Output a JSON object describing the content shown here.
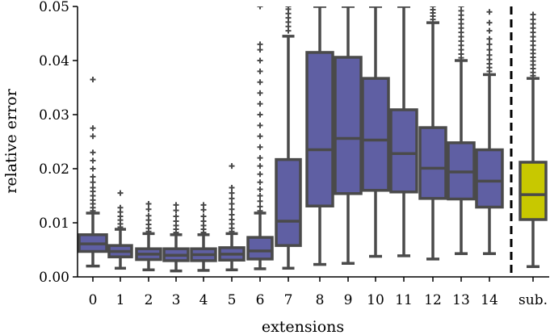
{
  "chart_data": {
    "type": "box",
    "xlabel": "extensions",
    "ylabel": "relative error",
    "ylim": [
      0,
      0.05
    ],
    "yticks": [
      "0.00",
      "0.01",
      "0.02",
      "0.03",
      "0.04",
      "0.05"
    ],
    "categories": [
      "0",
      "1",
      "2",
      "3",
      "4",
      "5",
      "6",
      "7",
      "8",
      "9",
      "10",
      "11",
      "12",
      "13",
      "14",
      "sub."
    ],
    "separator_after_category": "14",
    "colors": {
      "box_fill": "#5f5fa3",
      "sub_fill": "#c8c800",
      "box_edge": "#4a4a4a",
      "axis": "#000000"
    },
    "boxes": [
      {
        "category": "0",
        "whisker_low": 0.002,
        "q1": 0.0047,
        "median": 0.0061,
        "q3": 0.0078,
        "whisker_high": 0.0118,
        "fliers": [
          0.0122,
          0.0128,
          0.0135,
          0.0142,
          0.015,
          0.0158,
          0.0165,
          0.0175,
          0.0185,
          0.02,
          0.0215,
          0.023,
          0.026,
          0.0275,
          0.0365
        ]
      },
      {
        "category": "1",
        "whisker_low": 0.0016,
        "q1": 0.0037,
        "median": 0.0047,
        "q3": 0.0058,
        "whisker_high": 0.0088,
        "fliers": [
          0.0092,
          0.0098,
          0.0105,
          0.0112,
          0.012,
          0.0128,
          0.0155
        ]
      },
      {
        "category": "2",
        "whisker_low": 0.0013,
        "q1": 0.0032,
        "median": 0.0042,
        "q3": 0.0052,
        "whisker_high": 0.008,
        "fliers": [
          0.0084,
          0.009,
          0.0097,
          0.0105,
          0.0113,
          0.0125,
          0.0135
        ]
      },
      {
        "category": "3",
        "whisker_low": 0.0011,
        "q1": 0.003,
        "median": 0.004,
        "q3": 0.0052,
        "whisker_high": 0.0078,
        "fliers": [
          0.0082,
          0.0088,
          0.0095,
          0.0103,
          0.0112,
          0.0123,
          0.0133
        ]
      },
      {
        "category": "4",
        "whisker_low": 0.0012,
        "q1": 0.003,
        "median": 0.0041,
        "q3": 0.0052,
        "whisker_high": 0.0078,
        "fliers": [
          0.0082,
          0.0088,
          0.0095,
          0.0103,
          0.0112,
          0.0124,
          0.0133
        ]
      },
      {
        "category": "5",
        "whisker_low": 0.0013,
        "q1": 0.0031,
        "median": 0.0042,
        "q3": 0.0054,
        "whisker_high": 0.008,
        "fliers": [
          0.0084,
          0.009,
          0.0098,
          0.0106,
          0.0115,
          0.0125,
          0.0135,
          0.0145,
          0.0155,
          0.0165,
          0.0205
        ]
      },
      {
        "category": "6",
        "whisker_low": 0.0015,
        "q1": 0.0033,
        "median": 0.0048,
        "q3": 0.0073,
        "whisker_high": 0.0118,
        "fliers": [
          0.0122,
          0.013,
          0.014,
          0.015,
          0.0162,
          0.0175,
          0.019,
          0.0205,
          0.022,
          0.024,
          0.026,
          0.028,
          0.03,
          0.032,
          0.034,
          0.036,
          0.038,
          0.04,
          0.042,
          0.043,
          0.05
        ]
      },
      {
        "category": "7",
        "whisker_low": 0.0016,
        "q1": 0.0058,
        "median": 0.0103,
        "q3": 0.0217,
        "whisker_high": 0.0445,
        "fliers": [
          0.0455,
          0.0463,
          0.0471,
          0.0479,
          0.0487,
          0.0495,
          0.05
        ]
      },
      {
        "category": "8",
        "whisker_low": 0.0023,
        "q1": 0.0131,
        "median": 0.0235,
        "q3": 0.0415,
        "whisker_high": 0.05,
        "fliers": []
      },
      {
        "category": "9",
        "whisker_low": 0.0025,
        "q1": 0.0154,
        "median": 0.0256,
        "q3": 0.0406,
        "whisker_high": 0.05,
        "fliers": []
      },
      {
        "category": "10",
        "whisker_low": 0.0038,
        "q1": 0.016,
        "median": 0.0253,
        "q3": 0.0367,
        "whisker_high": 0.05,
        "fliers": []
      },
      {
        "category": "11",
        "whisker_low": 0.0039,
        "q1": 0.0157,
        "median": 0.0228,
        "q3": 0.0309,
        "whisker_high": 0.05,
        "fliers": []
      },
      {
        "category": "12",
        "whisker_low": 0.0033,
        "q1": 0.0145,
        "median": 0.0201,
        "q3": 0.0276,
        "whisker_high": 0.047,
        "fliers": [
          0.0476,
          0.0482,
          0.0488,
          0.0494,
          0.05
        ]
      },
      {
        "category": "13",
        "whisker_low": 0.0043,
        "q1": 0.0144,
        "median": 0.0194,
        "q3": 0.0248,
        "whisker_high": 0.04,
        "fliers": [
          0.0405,
          0.0412,
          0.042,
          0.0428,
          0.0436,
          0.0444,
          0.0452,
          0.046,
          0.0468,
          0.0476,
          0.0484,
          0.0492,
          0.05
        ]
      },
      {
        "category": "14",
        "whisker_low": 0.0043,
        "q1": 0.0129,
        "median": 0.0177,
        "q3": 0.0235,
        "whisker_high": 0.0374,
        "fliers": [
          0.038,
          0.0387,
          0.0394,
          0.0402,
          0.041,
          0.042,
          0.043,
          0.044,
          0.0455,
          0.047,
          0.049
        ]
      },
      {
        "category": "sub.",
        "whisker_low": 0.0019,
        "q1": 0.0106,
        "median": 0.0152,
        "q3": 0.0212,
        "whisker_high": 0.0367,
        "fliers": [
          0.0372,
          0.0378,
          0.0385,
          0.0392,
          0.0399,
          0.0406,
          0.0413,
          0.042,
          0.0428,
          0.0436,
          0.0444,
          0.0452,
          0.046,
          0.0468,
          0.0476,
          0.0485
        ]
      }
    ]
  }
}
